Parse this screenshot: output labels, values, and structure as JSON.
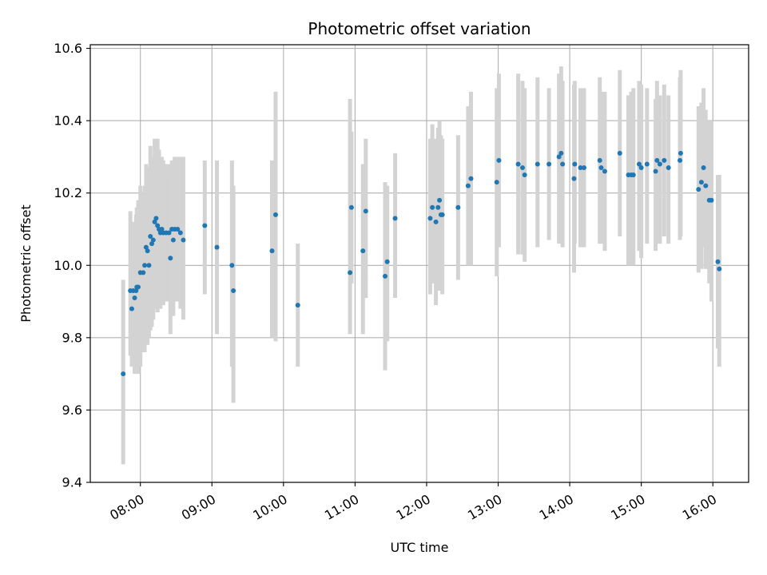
{
  "chart_data": {
    "type": "scatter",
    "title": "Photometric offset variation",
    "xlabel": "UTC time",
    "ylabel": "Photometric offset",
    "xlim": [
      7.3,
      16.5
    ],
    "ylim": [
      9.4,
      10.61
    ],
    "x_ticks": [
      8,
      9,
      10,
      11,
      12,
      13,
      14,
      15,
      16
    ],
    "x_tick_labels": [
      "08:00",
      "09:00",
      "10:00",
      "11:00",
      "12:00",
      "13:00",
      "14:00",
      "15:00",
      "16:00"
    ],
    "y_ticks": [
      9.4,
      9.6,
      9.8,
      10.0,
      10.2,
      10.4,
      10.6
    ],
    "y_tick_labels": [
      "9.4",
      "9.6",
      "9.8",
      "10.0",
      "10.2",
      "10.4",
      "10.6"
    ],
    "grid": true,
    "colors": {
      "point": "#1f77b4",
      "errorbar": "#d3d3d3",
      "grid": "#b0b0b0",
      "axis": "#000000"
    },
    "series": [
      {
        "name": "Photometric offset",
        "x": [
          7.76,
          7.86,
          7.88,
          7.9,
          7.92,
          7.94,
          7.95,
          7.97,
          8.0,
          8.04,
          8.06,
          8.08,
          8.1,
          8.12,
          8.14,
          8.16,
          8.18,
          8.2,
          8.22,
          8.24,
          8.26,
          8.28,
          8.3,
          8.32,
          8.36,
          8.4,
          8.42,
          8.44,
          8.46,
          8.48,
          8.52,
          8.56,
          8.6,
          8.9,
          9.07,
          9.28,
          9.3,
          9.84,
          9.89,
          10.2,
          10.93,
          10.95,
          11.11,
          11.15,
          11.42,
          11.45,
          11.56,
          12.05,
          12.08,
          12.13,
          12.16,
          12.18,
          12.2,
          12.22,
          12.44,
          12.58,
          12.62,
          12.98,
          13.01,
          13.28,
          13.34,
          13.37,
          13.55,
          13.71,
          13.85,
          13.88,
          13.9,
          14.06,
          14.07,
          14.15,
          14.2,
          14.42,
          14.44,
          14.49,
          14.7,
          14.82,
          14.86,
          14.89,
          14.97,
          15.0,
          15.08,
          15.2,
          15.22,
          15.26,
          15.32,
          15.38,
          15.54,
          15.55,
          15.8,
          15.84,
          15.87,
          15.9,
          15.95,
          15.98,
          16.07,
          16.09
        ],
        "y": [
          9.7,
          9.93,
          9.88,
          9.93,
          9.91,
          9.93,
          9.94,
          9.94,
          9.98,
          9.98,
          10.0,
          10.05,
          10.04,
          10.0,
          10.08,
          10.06,
          10.07,
          10.12,
          10.13,
          10.11,
          10.1,
          10.09,
          10.1,
          10.09,
          10.09,
          10.09,
          10.02,
          10.1,
          10.07,
          10.1,
          10.1,
          10.09,
          10.07,
          10.11,
          10.05,
          10.0,
          9.93,
          10.04,
          10.14,
          9.89,
          9.98,
          10.16,
          10.04,
          10.15,
          9.97,
          10.01,
          10.13,
          10.13,
          10.16,
          10.12,
          10.16,
          10.18,
          10.14,
          10.14,
          10.16,
          10.22,
          10.24,
          10.23,
          10.29,
          10.28,
          10.27,
          10.25,
          10.28,
          10.28,
          10.3,
          10.31,
          10.28,
          10.24,
          10.28,
          10.27,
          10.27,
          10.29,
          10.27,
          10.26,
          10.31,
          10.25,
          10.25,
          10.25,
          10.28,
          10.27,
          10.28,
          10.26,
          10.29,
          10.28,
          10.29,
          10.27,
          10.29,
          10.31,
          10.21,
          10.23,
          10.27,
          10.22,
          10.18,
          10.18,
          10.01,
          9.99
        ],
        "err_low": [
          9.45,
          9.75,
          9.72,
          9.74,
          9.7,
          9.72,
          9.7,
          9.7,
          9.72,
          9.76,
          9.76,
          9.8,
          9.78,
          9.8,
          9.82,
          9.83,
          9.85,
          9.88,
          9.88,
          9.87,
          9.88,
          9.88,
          9.9,
          9.89,
          9.9,
          9.9,
          9.81,
          9.9,
          9.86,
          9.9,
          9.9,
          9.88,
          9.85,
          9.92,
          9.81,
          9.72,
          9.62,
          9.8,
          9.79,
          9.72,
          9.81,
          9.95,
          9.81,
          9.91,
          9.71,
          9.79,
          9.91,
          9.92,
          9.95,
          9.89,
          9.93,
          9.95,
          9.93,
          9.92,
          9.96,
          10.0,
          10.0,
          9.97,
          10.05,
          10.03,
          10.03,
          10.01,
          10.05,
          10.07,
          10.06,
          10.07,
          10.05,
          9.98,
          10.06,
          10.05,
          10.05,
          10.06,
          10.06,
          10.04,
          10.08,
          10.0,
          10.0,
          10.0,
          10.04,
          10.02,
          10.06,
          10.04,
          10.06,
          10.06,
          10.08,
          10.06,
          10.07,
          10.08,
          9.98,
          9.99,
          10.05,
          9.99,
          9.95,
          9.9,
          9.77,
          9.72
        ],
        "err_high": [
          9.96,
          10.15,
          10.04,
          10.12,
          10.12,
          10.14,
          10.16,
          10.18,
          10.22,
          10.2,
          10.22,
          10.28,
          10.27,
          10.22,
          10.33,
          10.3,
          10.3,
          10.35,
          10.35,
          10.35,
          10.32,
          10.3,
          10.3,
          10.29,
          10.28,
          10.28,
          10.24,
          10.29,
          10.28,
          10.3,
          10.3,
          10.3,
          10.3,
          10.29,
          10.29,
          10.29,
          10.22,
          10.29,
          10.48,
          10.06,
          10.46,
          10.37,
          10.28,
          10.35,
          10.23,
          10.22,
          10.31,
          10.35,
          10.39,
          10.35,
          10.38,
          10.4,
          10.36,
          10.35,
          10.36,
          10.44,
          10.48,
          10.49,
          10.53,
          10.53,
          10.51,
          10.49,
          10.52,
          10.49,
          10.53,
          10.55,
          10.51,
          10.5,
          10.51,
          10.49,
          10.49,
          10.52,
          10.48,
          10.48,
          10.54,
          10.47,
          10.48,
          10.49,
          10.51,
          10.5,
          10.49,
          10.46,
          10.51,
          10.47,
          10.5,
          10.47,
          10.52,
          10.54,
          10.44,
          10.45,
          10.49,
          10.43,
          10.4,
          10.4,
          10.25,
          10.25
        ]
      }
    ]
  }
}
